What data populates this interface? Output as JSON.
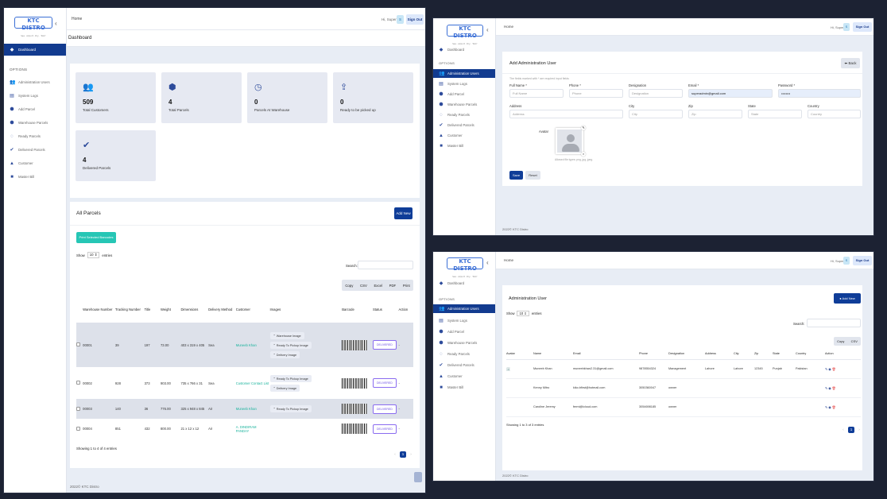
{
  "app": {
    "logo_text": "KTC DISTRO",
    "logo_tagline": "Sea · Airport · Dry · 'Slim'",
    "home": "Home",
    "user": "Hi, Super",
    "avatar_letter": "S",
    "signout": "Sign Out",
    "footer": "2022© KTC Distro"
  },
  "sidebar": {
    "dashboard": "Dashboard",
    "options_label": "OPTIONS",
    "items": [
      "Administration Users",
      "System Logs",
      "Add Parcel",
      "Warehouse Parcels",
      "Ready Parcels",
      "Delivered Parcels",
      "Customer",
      "Master Bill"
    ]
  },
  "dashboard": {
    "title": "Dashboard",
    "stats": [
      {
        "icon": "users-icon",
        "value": "509",
        "label": "Total Customers"
      },
      {
        "icon": "parcel-icon",
        "value": "4",
        "label": "Total Parcels"
      },
      {
        "icon": "clock-icon",
        "value": "0",
        "label": "Parcels At Warehouse"
      },
      {
        "icon": "box-upload-icon",
        "value": "0",
        "label": "Ready to be picked up"
      },
      {
        "icon": "check-badge-icon",
        "value": "4",
        "label": "Delivered Parcels"
      }
    ],
    "parcels": {
      "title": "All Parcels",
      "add_new": "Add New",
      "print_barcodes": "Print Selected Barcodes",
      "show": "Show",
      "show_value": "10",
      "entries": "entries",
      "search": "Search:",
      "export": [
        "Copy",
        "CSV",
        "Excel",
        "PDF",
        "Print"
      ],
      "columns": [
        "Warehouse Number",
        "Tracking Number",
        "Title",
        "Weight",
        "Dimensions",
        "Delivery Method",
        "Customer",
        "Images",
        "Barcode",
        "Status",
        "Action"
      ],
      "rows": [
        {
          "warehouse": "00001",
          "tracking": "39",
          "title": "197",
          "weight": "73.00",
          "dims": "403 x 319 x 405",
          "method": "Sea",
          "customer": "Muneeb Khan",
          "images": [
            "Warehouse Image",
            "Ready To Pickup Image",
            "Delivery Image"
          ],
          "status": "DELIVERED",
          "action": "-"
        },
        {
          "warehouse": "00002",
          "tracking": "928",
          "title": "373",
          "weight": "903.00",
          "dims": "735 x 766 x 31",
          "method": "Sea",
          "customer": "Customer Contact List",
          "images": [
            "Ready To Pickup Image",
            "Delivery Image"
          ],
          "status": "DELIVERED",
          "action": "-"
        },
        {
          "warehouse": "00003",
          "tracking": "140",
          "title": "36",
          "weight": "776.00",
          "dims": "325 x 948 x 845",
          "method": "Air",
          "customer": "Muneeb Khan",
          "images": [
            "Ready To Pickup Image"
          ],
          "status": "DELIVERED",
          "action": "-"
        },
        {
          "warehouse": "00004",
          "tracking": "851",
          "title": "432",
          "weight": "800.00",
          "dims": "21 x 12 x 12",
          "method": "Air",
          "customer": "A. DINDIRAM PANDAY",
          "images": [],
          "status": "DELIVERED",
          "action": "-"
        }
      ],
      "showing": "Showing 1 to 4 of 4 entries",
      "page": "1"
    }
  },
  "add_admin": {
    "title": "Add Administration User",
    "back": "Back",
    "note": "The fields marked with * are required input fields",
    "fields": [
      {
        "label": "Full Name *",
        "placeholder": "Full Name",
        "value": ""
      },
      {
        "label": "Phone *",
        "placeholder": "Phone",
        "value": ""
      },
      {
        "label": "Designation",
        "placeholder": "Designation",
        "value": ""
      },
      {
        "label": "Email *",
        "placeholder": "Email",
        "value": "superadmin@gmail.com"
      },
      {
        "label": "Password *",
        "placeholder": "Password",
        "value": "••••••••"
      },
      {
        "label": "Address",
        "placeholder": "Address",
        "value": ""
      },
      {
        "label": "City",
        "placeholder": "City",
        "value": ""
      },
      {
        "label": "Zip",
        "placeholder": "Zip",
        "value": ""
      },
      {
        "label": "State",
        "placeholder": "State",
        "value": ""
      },
      {
        "label": "Country",
        "placeholder": "Country",
        "value": ""
      }
    ],
    "avatar_label": "Avatar",
    "avatar_hint": "Allowed file types: png, jpg, jpeg.",
    "save": "Save",
    "reset": "Reset"
  },
  "admin_list": {
    "title": "Administration User",
    "add_new": "Add New",
    "show": "Show",
    "show_value": "10",
    "entries": "entries",
    "search": "Search:",
    "export": [
      "Copy",
      "CSV"
    ],
    "columns": [
      "Avatar",
      "Name",
      "Email",
      "Phone",
      "Designation",
      "Address",
      "City",
      "Zip",
      "State",
      "Country",
      "Action"
    ],
    "rows": [
      {
        "name": "Muneeb Khan",
        "email": "muneebkhan2.31@gmail.com",
        "phone": "9878554324",
        "designation": "Management",
        "address": "Lahore",
        "city": "Lahore",
        "zip": "12345",
        "state": "Punjab",
        "country": "Pakistan"
      },
      {
        "name": "Kenny Mitro",
        "email": "kiko.bfirst@hotmail.com",
        "phone": "3050360047",
        "designation": "owner",
        "address": "",
        "city": "",
        "zip": "",
        "state": "",
        "country": ""
      },
      {
        "name": "Caroline Jeremy",
        "email": "fermi@icloud.com",
        "phone": "3054698185",
        "designation": "owner",
        "address": "",
        "city": "",
        "zip": "",
        "state": "",
        "country": ""
      }
    ],
    "showing": "Showing 1 to 3 of 3 entries",
    "page": "1"
  },
  "colors": {
    "primary": "#0f3d98",
    "teal": "#26c6b5",
    "status": "#6b4de6",
    "background": "#e8edf5"
  }
}
